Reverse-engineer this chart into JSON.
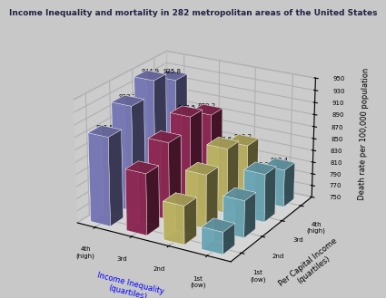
{
  "title": "Income Inequality and mortality in 282 metropolitan areas of the United States",
  "ylabel": "Death rate per 100,000 population",
  "xlabel_income_ineq": "Income Inequality\n(quartiles)",
  "xlabel_per_cap": "Per Capital Income\n(quartiles)",
  "ineq_labels": [
    "4th\n(high)",
    "3rd",
    "2nd",
    "1st (low)"
  ],
  "income_labels": [
    "1st (low)",
    "2nd",
    "3rd",
    "4th (high)"
  ],
  "values": [
    [
      895.5,
      923.7,
      944.9,
      925.8
    ],
    [
      850.5,
      877.3,
      897.5,
      879.2
    ],
    [
      812.8,
      838.4,
      857.6,
      840.2
    ],
    [
      785.9,
      810.6,
      829.2,
      812.4
    ]
  ],
  "bar_colors_by_ineq": [
    "#8888cc",
    "#a03060",
    "#d4c870",
    "#7bbccc"
  ],
  "ylim": [
    750,
    950
  ],
  "yticks": [
    750,
    770,
    790,
    810,
    830,
    850,
    870,
    890,
    910,
    930,
    950
  ],
  "background_color": "#c8c8c8",
  "pane_color_back": "#d8d8d8",
  "pane_color_side": "#c0c0c0",
  "title_fontsize": 6.5,
  "label_fontsize": 6,
  "tick_fontsize": 5,
  "value_fontsize": 5
}
